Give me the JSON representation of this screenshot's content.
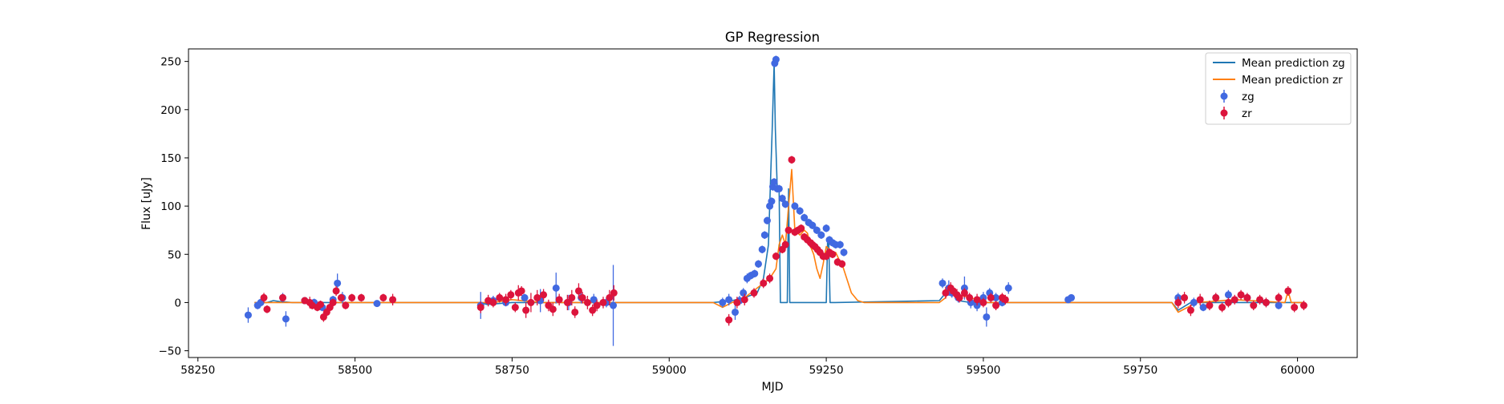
{
  "chart_data": {
    "type": "scatter",
    "title": "GP Regression",
    "xlabel": "MJD",
    "ylabel": "Flux [uJy]",
    "xlim": [
      58235,
      60095
    ],
    "ylim": [
      -57,
      263
    ],
    "xticks": [
      58250,
      58500,
      58750,
      59000,
      59250,
      59500,
      59750,
      60000
    ],
    "yticks": [
      -50,
      0,
      50,
      100,
      150,
      200,
      250
    ],
    "grid": false,
    "legend_position": "top-right",
    "series": [
      {
        "name": "Mean prediction zg",
        "kind": "line",
        "color": "#1f77b4",
        "x": [
          58340,
          58360,
          58370,
          58380,
          58400,
          58700,
          58710,
          58750,
          58800,
          58900,
          59070,
          59100,
          59120,
          59140,
          59150,
          59158,
          59164,
          59167,
          59169,
          59172,
          59175,
          59177,
          59180,
          59186,
          59188,
          59190,
          59192,
          59195,
          59250,
          59252,
          59254,
          59256,
          59262,
          59264,
          59430,
          59440,
          59450,
          59460,
          59480,
          59500,
          59530,
          59545,
          59550,
          59800,
          59810,
          59820,
          59830,
          60000,
          60010
        ],
        "y": [
          0,
          0,
          2,
          1,
          0,
          0,
          -2,
          0,
          0,
          0,
          0,
          2,
          5,
          10,
          25,
          60,
          180,
          248,
          180,
          118,
          118,
          0,
          0,
          0,
          0,
          118,
          0,
          0,
          0,
          62,
          62,
          0,
          0,
          0,
          2,
          10,
          15,
          2,
          0,
          0,
          0,
          0,
          0,
          0,
          -8,
          -4,
          0,
          0,
          0
        ]
      },
      {
        "name": "Mean prediction zr",
        "kind": "line",
        "color": "#ff7f0e",
        "x": [
          58340,
          58400,
          58430,
          58440,
          58450,
          58470,
          58700,
          58720,
          58750,
          58780,
          58800,
          58900,
          58920,
          59070,
          59085,
          59100,
          59120,
          59140,
          59160,
          59170,
          59175,
          59180,
          59185,
          59190,
          59195,
          59200,
          59208,
          59215,
          59220,
          59225,
          59230,
          59235,
          59240,
          59245,
          59250,
          59255,
          59260,
          59265,
          59270,
          59275,
          59280,
          59290,
          59300,
          59310,
          59430,
          59440,
          59445,
          59450,
          59460,
          59480,
          59500,
          59530,
          59540,
          59800,
          59810,
          59825,
          59840,
          59900,
          59980,
          59985,
          59990,
          60010
        ],
        "y": [
          0,
          0,
          0,
          -3,
          -8,
          0,
          0,
          0,
          3,
          1,
          0,
          0,
          0,
          0,
          -5,
          0,
          5,
          15,
          25,
          35,
          60,
          70,
          60,
          100,
          138,
          75,
          70,
          75,
          72,
          58,
          50,
          35,
          25,
          40,
          58,
          55,
          50,
          52,
          45,
          40,
          30,
          10,
          2,
          0,
          0,
          5,
          15,
          12,
          8,
          5,
          0,
          0,
          0,
          0,
          -10,
          -5,
          0,
          3,
          0,
          12,
          0,
          0
        ]
      },
      {
        "name": "zg",
        "kind": "errorbar",
        "color": "#4169e1",
        "x": [
          58330,
          58345,
          58350,
          58385,
          58390,
          58420,
          58435,
          58448,
          58465,
          58472,
          58480,
          58535,
          58700,
          58720,
          58740,
          58770,
          58795,
          58820,
          58840,
          58860,
          58880,
          58900,
          58911,
          59085,
          59095,
          59105,
          59112,
          59118,
          59124,
          59130,
          59136,
          59142,
          59148,
          59152,
          59156,
          59160,
          59163,
          59165,
          59167,
          59168,
          59170,
          59172,
          59175,
          59180,
          59185,
          59200,
          59208,
          59215,
          59222,
          59228,
          59235,
          59242,
          59250,
          59255,
          59260,
          59265,
          59272,
          59278,
          59435,
          59445,
          59450,
          59460,
          59470,
          59480,
          59490,
          59500,
          59505,
          59510,
          59520,
          59530,
          59540,
          59635,
          59640,
          59810,
          59835,
          59850,
          59870,
          59890,
          59920,
          59950,
          59970
        ],
        "y": [
          -13,
          -3,
          0,
          5,
          -17,
          2,
          0,
          -5,
          3,
          20,
          5,
          -1,
          -3,
          2,
          0,
          5,
          2,
          15,
          0,
          5,
          3,
          0,
          -3,
          0,
          3,
          -10,
          2,
          10,
          25,
          28,
          30,
          40,
          55,
          70,
          85,
          100,
          105,
          120,
          125,
          248,
          252,
          118,
          118,
          108,
          102,
          100,
          95,
          88,
          83,
          80,
          75,
          70,
          77,
          65,
          62,
          60,
          60,
          52,
          20,
          15,
          10,
          5,
          15,
          0,
          -3,
          5,
          -15,
          10,
          5,
          0,
          15,
          3,
          5,
          5,
          0,
          -5,
          5,
          8,
          5,
          0,
          -3
        ],
        "yerr": [
          8,
          4,
          4,
          5,
          8,
          3,
          4,
          4,
          4,
          10,
          6,
          3,
          14,
          5,
          4,
          4,
          12,
          16,
          8,
          6,
          6,
          5,
          42,
          5,
          6,
          8,
          5,
          5,
          5,
          4,
          4,
          4,
          4,
          4,
          4,
          4,
          4,
          4,
          4,
          4,
          4,
          4,
          4,
          4,
          4,
          4,
          4,
          4,
          4,
          4,
          4,
          4,
          4,
          4,
          4,
          4,
          4,
          4,
          5,
          8,
          5,
          5,
          12,
          6,
          6,
          6,
          10,
          5,
          5,
          4,
          6,
          3,
          3,
          5,
          5,
          4,
          4,
          5,
          4,
          4,
          4
        ]
      },
      {
        "name": "zr",
        "kind": "errorbar",
        "color": "#dc143c",
        "x": [
          58355,
          58360,
          58385,
          58420,
          58428,
          58432,
          58440,
          58445,
          58450,
          58455,
          58460,
          58465,
          58470,
          58478,
          58485,
          58495,
          58510,
          58545,
          58560,
          58700,
          58712,
          58720,
          58730,
          58740,
          58748,
          58755,
          58760,
          58765,
          58772,
          58780,
          58790,
          58800,
          58808,
          58815,
          58825,
          58838,
          58845,
          58850,
          58856,
          58862,
          58870,
          58878,
          58885,
          58895,
          58905,
          58912,
          59095,
          59108,
          59120,
          59135,
          59150,
          59160,
          59170,
          59180,
          59185,
          59190,
          59195,
          59200,
          59205,
          59210,
          59215,
          59220,
          59225,
          59228,
          59232,
          59236,
          59240,
          59245,
          59250,
          59255,
          59260,
          59268,
          59275,
          59440,
          59448,
          59452,
          59458,
          59462,
          59470,
          59478,
          59490,
          59500,
          59512,
          59520,
          59530,
          59535,
          59810,
          59820,
          59830,
          59845,
          59860,
          59870,
          59880,
          59890,
          59900,
          59910,
          59920,
          59930,
          59940,
          59950,
          59970,
          59985,
          59995,
          60010
        ],
        "y": [
          5,
          -7,
          5,
          2,
          0,
          -3,
          -5,
          -2,
          -15,
          -10,
          -5,
          0,
          12,
          5,
          -3,
          5,
          5,
          5,
          3,
          -5,
          2,
          0,
          5,
          3,
          8,
          -5,
          10,
          12,
          -8,
          0,
          5,
          8,
          -3,
          -7,
          3,
          0,
          5,
          -10,
          12,
          5,
          0,
          -8,
          -3,
          0,
          5,
          10,
          -18,
          0,
          3,
          10,
          20,
          25,
          48,
          55,
          60,
          75,
          148,
          73,
          75,
          77,
          68,
          65,
          62,
          60,
          58,
          55,
          52,
          48,
          48,
          52,
          50,
          42,
          40,
          10,
          15,
          12,
          8,
          5,
          10,
          5,
          3,
          0,
          5,
          -3,
          5,
          3,
          0,
          5,
          -8,
          3,
          -3,
          5,
          -5,
          0,
          3,
          8,
          5,
          -3,
          3,
          0,
          5,
          12,
          -5,
          -3
        ],
        "yerr": [
          5,
          4,
          4,
          3,
          6,
          4,
          4,
          4,
          5,
          4,
          4,
          4,
          5,
          4,
          4,
          4,
          4,
          4,
          6,
          6,
          6,
          5,
          5,
          6,
          5,
          5,
          8,
          5,
          8,
          10,
          8,
          6,
          6,
          7,
          6,
          8,
          8,
          6,
          8,
          6,
          7,
          6,
          6,
          6,
          8,
          8,
          6,
          6,
          6,
          5,
          5,
          5,
          4,
          4,
          4,
          4,
          4,
          4,
          4,
          4,
          4,
          4,
          4,
          4,
          4,
          4,
          4,
          4,
          4,
          4,
          4,
          4,
          4,
          6,
          6,
          5,
          6,
          5,
          5,
          5,
          6,
          5,
          5,
          5,
          5,
          5,
          6,
          6,
          6,
          6,
          5,
          5,
          5,
          5,
          5,
          5,
          5,
          5,
          5,
          5,
          5,
          5,
          5,
          5
        ]
      }
    ]
  }
}
